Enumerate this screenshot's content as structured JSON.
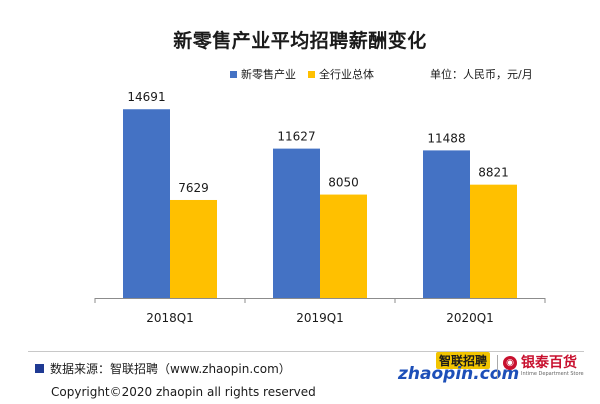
{
  "header": {
    "title": "新零售产业平均招聘薪酬变化",
    "unit": "单位：人民币，元/月"
  },
  "colors": {
    "series_a": "#4472c4",
    "series_b": "#ffc000",
    "axis": "#8c8c8c"
  },
  "chart_data": {
    "type": "bar",
    "title": "新零售产业平均招聘薪酬变化",
    "categories": [
      "2018Q1",
      "2019Q1",
      "2020Q1"
    ],
    "series": [
      {
        "name": "新零售产业",
        "values": [
          14691,
          11627,
          11488
        ]
      },
      {
        "name": "全行业总体",
        "values": [
          7629,
          8050,
          8821
        ]
      }
    ],
    "ylim": [
      0,
      16500
    ],
    "legend": "top-center",
    "grid": false
  },
  "footer": {
    "source": "数据来源：智联招聘（www.zhaopin.com）",
    "copyright": "Copyright©2020 zhaopin all rights reserved"
  },
  "logos": {
    "zhaopin_cn": "智联招聘",
    "zhaopin_en": "zhaopin.com",
    "yintai_name": "银泰百货",
    "yintai_sub": "Intime Department Store"
  }
}
